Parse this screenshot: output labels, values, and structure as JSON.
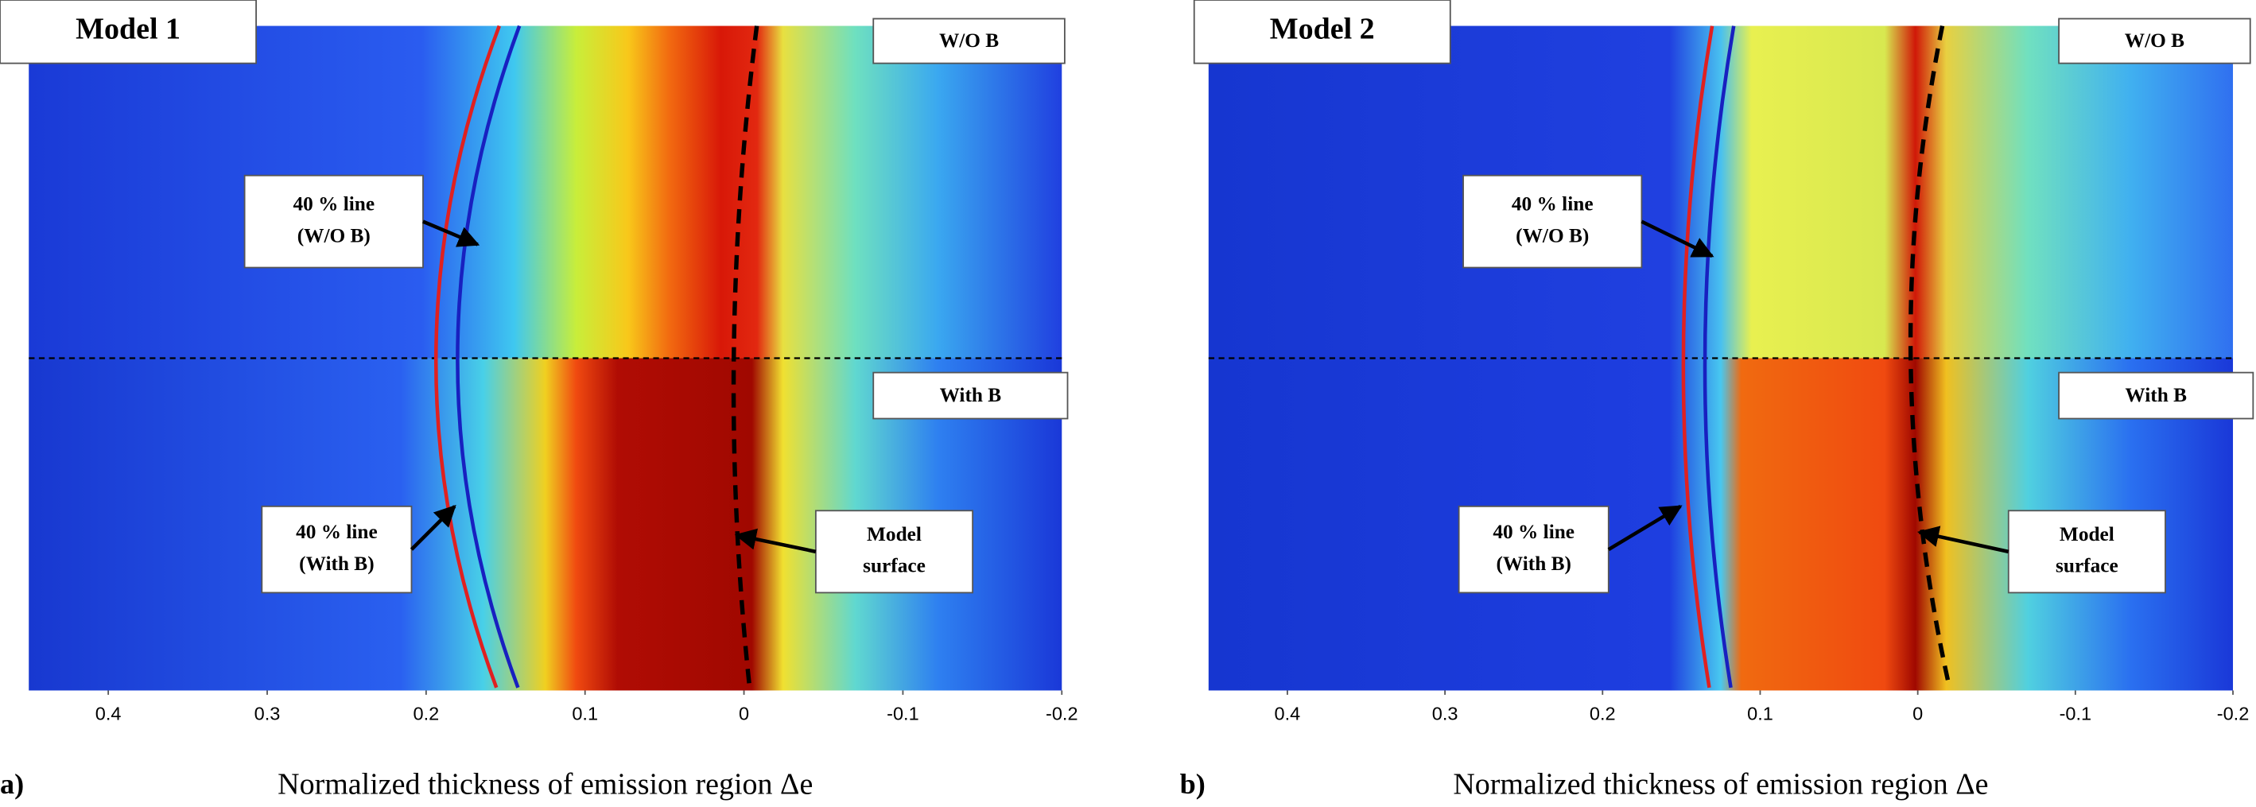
{
  "chart_data": [
    {
      "type": "image",
      "panel": "a)",
      "title": "Model 1",
      "xlabel": "Normalized thickness of emission region Δe",
      "xlim": [
        0.45,
        -0.2
      ],
      "xticks": [
        0.4,
        0.3,
        0.2,
        0.1,
        0,
        -0.1,
        -0.2
      ],
      "top_label": "W/O B",
      "bottom_label": "With B",
      "annotations": [
        {
          "lines": [
            "40 % line",
            "(W/O B)"
          ]
        },
        {
          "lines": [
            "40 % line",
            "(With B)"
          ]
        },
        {
          "lines": [
            "Model",
            "surface"
          ]
        }
      ]
    },
    {
      "type": "image",
      "panel": "b)",
      "title": "Model 2",
      "xlabel": "Normalized thickness of emission region Δe",
      "xlim": [
        0.45,
        -0.2
      ],
      "xticks": [
        0.4,
        0.3,
        0.2,
        0.1,
        0,
        -0.1,
        -0.2
      ],
      "top_label": "W/O B",
      "bottom_label": "With B",
      "annotations": [
        {
          "lines": [
            "40 % line",
            "(W/O B)"
          ]
        },
        {
          "lines": [
            "40 % line",
            "(With B)"
          ]
        },
        {
          "lines": [
            "Model",
            "surface"
          ]
        }
      ]
    }
  ]
}
